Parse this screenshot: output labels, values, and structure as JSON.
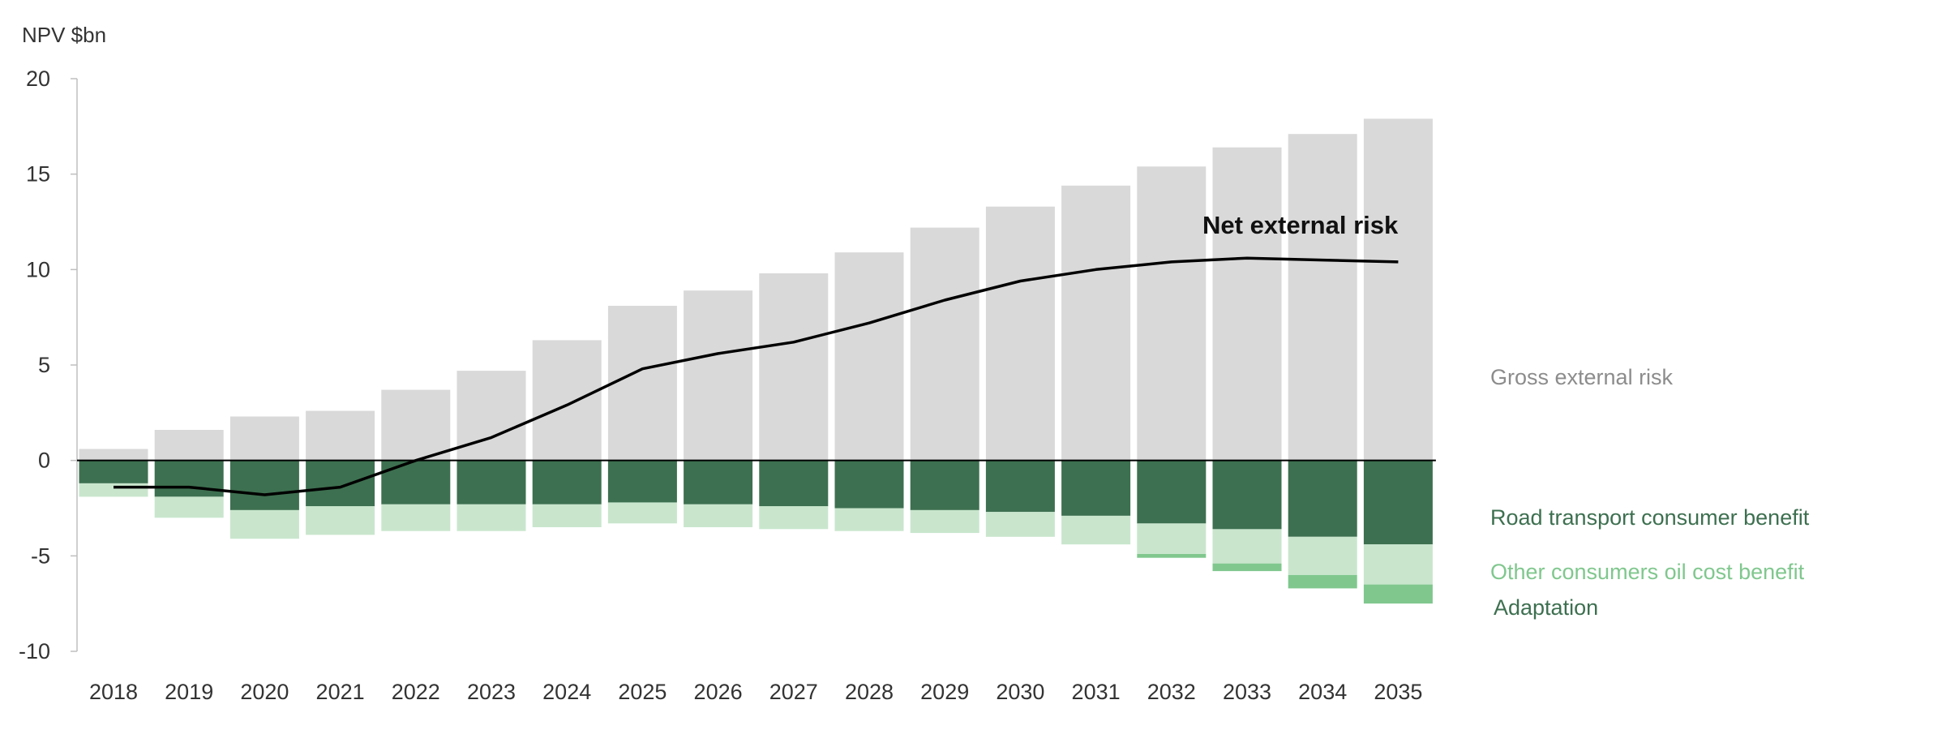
{
  "chart_data": {
    "type": "bar",
    "stacked": true,
    "ylabel": "NPV $bn",
    "xlabel": "",
    "ylim": [
      -10,
      20
    ],
    "yticks": [
      -10,
      -5,
      0,
      5,
      10,
      15,
      20
    ],
    "grid": false,
    "categories": [
      "2018",
      "2019",
      "2020",
      "2021",
      "2022",
      "2023",
      "2024",
      "2025",
      "2026",
      "2027",
      "2028",
      "2029",
      "2030",
      "2031",
      "2032",
      "2033",
      "2034",
      "2035"
    ],
    "series": [
      {
        "name": "Gross external risk",
        "color": "#d9d9d9",
        "values": [
          0.6,
          1.6,
          2.3,
          2.6,
          3.7,
          4.7,
          6.3,
          8.1,
          8.9,
          9.8,
          10.9,
          12.2,
          13.3,
          14.4,
          15.4,
          16.4,
          17.1,
          17.9
        ]
      },
      {
        "name": "Road transport consumer benefit",
        "color": "#3d7050",
        "values": [
          -1.2,
          -1.9,
          -2.6,
          -2.4,
          -2.3,
          -2.3,
          -2.3,
          -2.2,
          -2.3,
          -2.4,
          -2.5,
          -2.6,
          -2.7,
          -2.9,
          -3.3,
          -3.6,
          -4.0,
          -4.4
        ]
      },
      {
        "name": "Other consumers oil cost benefit",
        "color": "#c9e6cd",
        "values": [
          -0.7,
          -1.1,
          -1.5,
          -1.5,
          -1.4,
          -1.4,
          -1.2,
          -1.1,
          -1.2,
          -1.2,
          -1.2,
          -1.2,
          -1.3,
          -1.5,
          -1.6,
          -1.8,
          -2.0,
          -2.1
        ]
      },
      {
        "name": "Adaptation",
        "color": "#80c78e",
        "values": [
          0,
          0,
          0,
          0,
          0,
          0,
          0,
          0,
          0,
          0,
          0,
          0,
          0,
          0,
          -0.2,
          -0.4,
          -0.7,
          -1.0
        ]
      }
    ],
    "line": {
      "name": "Net external risk",
      "color": "#000000",
      "values": [
        -1.4,
        -1.4,
        -1.8,
        -1.4,
        0.0,
        1.2,
        2.9,
        4.8,
        5.6,
        6.2,
        7.2,
        8.4,
        9.4,
        10.0,
        10.4,
        10.6,
        10.5,
        10.4
      ]
    },
    "legend": {
      "placement": "right",
      "items": [
        {
          "label": "Gross external risk",
          "color": "#8c8c8c"
        },
        {
          "label": "Road transport consumer benefit",
          "color": "#3d7050"
        },
        {
          "label": "Other consumers oil cost benefit",
          "color": "#80c78e"
        },
        {
          "label": "Adaptation",
          "color": "#3d7050"
        }
      ]
    },
    "annotation": "Net external risk"
  }
}
